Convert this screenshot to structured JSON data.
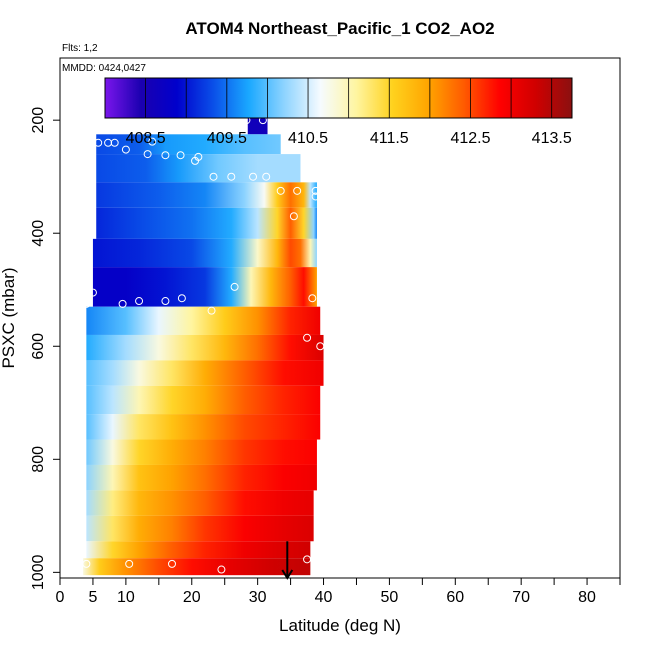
{
  "chart_data": {
    "type": "heatmap",
    "title": "ATOM4 Northeast_Pacific_1 CO2_AO2",
    "notes": [
      "Flts: 1,2",
      "MMDD: 0424,0427"
    ],
    "xlabel": "Latitude (deg N)",
    "ylabel": "PSXC (mbar)",
    "xlim": [
      0,
      85
    ],
    "ylim": [
      1010,
      90
    ],
    "x_ticks": [
      0,
      5,
      10,
      20,
      30,
      40,
      50,
      60,
      70,
      80
    ],
    "y_ticks": [
      200,
      400,
      600,
      800,
      1000
    ],
    "colorbar": {
      "min": 408.0,
      "max": 413.75,
      "tick_values": [
        408.5,
        409.5,
        410.5,
        411.5,
        412.5,
        413.5
      ],
      "tick_labels": [
        "408.5",
        "409.5",
        "410.5",
        "411.5",
        "412.5",
        "413.5"
      ],
      "colors": [
        "#7a16ec",
        "#1b00b0",
        "#0000cc",
        "#0a4ee8",
        "#1aa8ff",
        "#8fd4ff",
        "#f6fbff",
        "#fff5a0",
        "#ffd21e",
        "#ffa500",
        "#ff5a00",
        "#ff0000",
        "#cf0000",
        "#8b1010"
      ]
    },
    "bands": [
      {
        "p_top": 180,
        "p_bot": 225,
        "x0": 28.5,
        "x1": 31.5,
        "values": [
          [
            28.5,
            408.6
          ],
          [
            31.5,
            408.6
          ]
        ]
      },
      {
        "p_top": 225,
        "p_bot": 260,
        "x0": 5.5,
        "x1": 33.5,
        "values": [
          [
            5.5,
            409.3
          ],
          [
            12,
            409.4
          ],
          [
            16,
            409.7
          ],
          [
            22,
            409.8
          ],
          [
            28,
            410.0
          ],
          [
            33.5,
            410.1
          ]
        ]
      },
      {
        "p_top": 260,
        "p_bot": 310,
        "x0": 5.5,
        "x1": 36.5,
        "values": [
          [
            5.5,
            409.3
          ],
          [
            13,
            409.4
          ],
          [
            18,
            409.7
          ],
          [
            24,
            410.1
          ],
          [
            30,
            410.3
          ],
          [
            36.5,
            410.3
          ]
        ]
      },
      {
        "p_top": 310,
        "p_bot": 355,
        "x0": 5.5,
        "x1": 39.0,
        "values": [
          [
            5.5,
            409.2
          ],
          [
            15,
            409.4
          ],
          [
            22,
            409.6
          ],
          [
            28,
            410.2
          ],
          [
            31,
            410.7
          ],
          [
            33,
            411.6
          ],
          [
            35,
            412.3
          ],
          [
            37,
            411.8
          ],
          [
            38,
            410.4
          ],
          [
            39,
            409.8
          ]
        ]
      },
      {
        "p_top": 355,
        "p_bot": 410,
        "x0": 5.5,
        "x1": 39.0,
        "values": [
          [
            5.5,
            409.1
          ],
          [
            12,
            409.3
          ],
          [
            20,
            409.5
          ],
          [
            26,
            409.8
          ],
          [
            30,
            410.4
          ],
          [
            33,
            411.5
          ],
          [
            35,
            412.4
          ],
          [
            37,
            411.5
          ],
          [
            38.5,
            410.2
          ],
          [
            39,
            409.6
          ]
        ]
      },
      {
        "p_top": 410,
        "p_bot": 460,
        "x0": 5.0,
        "x1": 39.0,
        "values": [
          [
            5,
            409.0
          ],
          [
            12,
            409.1
          ],
          [
            20,
            409.3
          ],
          [
            26,
            409.8
          ],
          [
            30,
            410.9
          ],
          [
            33,
            411.8
          ],
          [
            35,
            412.5
          ],
          [
            36.5,
            412.3
          ],
          [
            38,
            411.0
          ],
          [
            39,
            410.2
          ]
        ]
      },
      {
        "p_top": 460,
        "p_bot": 530,
        "x0": 5.0,
        "x1": 39.0,
        "values": [
          [
            5,
            408.8
          ],
          [
            10,
            408.8
          ],
          [
            16,
            409.0
          ],
          [
            22,
            409.2
          ],
          [
            26,
            409.8
          ],
          [
            29,
            411.0
          ],
          [
            32,
            411.8
          ],
          [
            35,
            412.4
          ],
          [
            37,
            412.8
          ],
          [
            39,
            412.0
          ]
        ]
      },
      {
        "p_top": 530,
        "p_bot": 580,
        "x0": 4.0,
        "x1": 39.5,
        "values": [
          [
            4,
            409.6
          ],
          [
            10,
            410.0
          ],
          [
            15,
            410.6
          ],
          [
            20,
            411.1
          ],
          [
            25,
            411.6
          ],
          [
            30,
            412.1
          ],
          [
            35,
            412.7
          ],
          [
            39.5,
            413.0
          ]
        ]
      },
      {
        "p_top": 580,
        "p_bot": 625,
        "x0": 4.0,
        "x1": 40.0,
        "values": [
          [
            4,
            409.8
          ],
          [
            10,
            410.3
          ],
          [
            15,
            410.8
          ],
          [
            20,
            411.3
          ],
          [
            25,
            411.8
          ],
          [
            30,
            412.3
          ],
          [
            35,
            412.8
          ],
          [
            40,
            413.2
          ]
        ]
      },
      {
        "p_top": 625,
        "p_bot": 670,
        "x0": 4.0,
        "x1": 40.0,
        "values": [
          [
            4,
            410.0
          ],
          [
            8,
            410.3
          ],
          [
            12,
            410.8
          ],
          [
            17,
            411.3
          ],
          [
            22,
            411.9
          ],
          [
            28,
            412.4
          ],
          [
            34,
            412.8
          ],
          [
            40,
            413.0
          ]
        ]
      },
      {
        "p_top": 670,
        "p_bot": 720,
        "x0": 4.0,
        "x1": 39.5,
        "values": [
          [
            4,
            410.0
          ],
          [
            8,
            410.4
          ],
          [
            12,
            411.0
          ],
          [
            17,
            411.5
          ],
          [
            22,
            411.9
          ],
          [
            28,
            412.4
          ],
          [
            34,
            412.7
          ],
          [
            39.5,
            412.9
          ]
        ]
      },
      {
        "p_top": 720,
        "p_bot": 765,
        "x0": 4.0,
        "x1": 39.5,
        "values": [
          [
            4,
            410.0
          ],
          [
            8,
            410.6
          ],
          [
            12,
            411.3
          ],
          [
            17,
            411.7
          ],
          [
            22,
            412.1
          ],
          [
            28,
            412.5
          ],
          [
            34,
            412.7
          ],
          [
            39.5,
            412.9
          ]
        ]
      },
      {
        "p_top": 765,
        "p_bot": 810,
        "x0": 4.0,
        "x1": 39.0,
        "values": [
          [
            4,
            410.1
          ],
          [
            8,
            410.8
          ],
          [
            12,
            411.5
          ],
          [
            17,
            411.9
          ],
          [
            22,
            412.2
          ],
          [
            28,
            412.6
          ],
          [
            34,
            412.8
          ],
          [
            39,
            412.9
          ]
        ]
      },
      {
        "p_top": 810,
        "p_bot": 855,
        "x0": 4.0,
        "x1": 39.0,
        "values": [
          [
            4,
            410.2
          ],
          [
            8,
            411.0
          ],
          [
            12,
            411.7
          ],
          [
            17,
            412.0
          ],
          [
            22,
            412.3
          ],
          [
            28,
            412.7
          ],
          [
            34,
            412.9
          ],
          [
            39,
            413.0
          ]
        ]
      },
      {
        "p_top": 855,
        "p_bot": 900,
        "x0": 4.0,
        "x1": 38.5,
        "values": [
          [
            4,
            410.3
          ],
          [
            8,
            411.2
          ],
          [
            12,
            411.8
          ],
          [
            17,
            412.1
          ],
          [
            22,
            412.4
          ],
          [
            28,
            412.8
          ],
          [
            34,
            413.0
          ],
          [
            38.5,
            413.1
          ]
        ]
      },
      {
        "p_top": 900,
        "p_bot": 945,
        "x0": 4.0,
        "x1": 38.5,
        "values": [
          [
            4,
            410.4
          ],
          [
            8,
            411.3
          ],
          [
            12,
            411.9
          ],
          [
            17,
            412.2
          ],
          [
            22,
            412.6
          ],
          [
            28,
            412.9
          ],
          [
            34,
            413.1
          ],
          [
            38.5,
            413.2
          ]
        ]
      },
      {
        "p_top": 945,
        "p_bot": 975,
        "x0": 4.0,
        "x1": 38.0,
        "values": [
          [
            4,
            410.6
          ],
          [
            8,
            411.5
          ],
          [
            12,
            412.0
          ],
          [
            17,
            412.4
          ],
          [
            22,
            412.7
          ],
          [
            28,
            413.0
          ],
          [
            34,
            413.2
          ],
          [
            38,
            413.3
          ]
        ]
      },
      {
        "p_top": 975,
        "p_bot": 1005,
        "x0": 3.5,
        "x1": 38.0,
        "values": [
          [
            3.5,
            410.8
          ],
          [
            6,
            411.6
          ],
          [
            10,
            412.1
          ],
          [
            15,
            412.5
          ],
          [
            20,
            412.8
          ],
          [
            26,
            413.1
          ],
          [
            32,
            413.3
          ],
          [
            38,
            413.4
          ]
        ]
      }
    ],
    "points": [
      {
        "lat": 28.3,
        "p": 200
      },
      {
        "lat": 30.8,
        "p": 200
      },
      {
        "lat": 5.8,
        "p": 240
      },
      {
        "lat": 7.3,
        "p": 240
      },
      {
        "lat": 8.3,
        "p": 240
      },
      {
        "lat": 14.0,
        "p": 238
      },
      {
        "lat": 10.0,
        "p": 252
      },
      {
        "lat": 13.3,
        "p": 260
      },
      {
        "lat": 16.0,
        "p": 262
      },
      {
        "lat": 18.3,
        "p": 262
      },
      {
        "lat": 20.5,
        "p": 272
      },
      {
        "lat": 21.0,
        "p": 265
      },
      {
        "lat": 23.3,
        "p": 300
      },
      {
        "lat": 26.0,
        "p": 300
      },
      {
        "lat": 29.3,
        "p": 300
      },
      {
        "lat": 31.3,
        "p": 300
      },
      {
        "lat": 33.5,
        "p": 325
      },
      {
        "lat": 36.0,
        "p": 325
      },
      {
        "lat": 38.8,
        "p": 325
      },
      {
        "lat": 38.8,
        "p": 335
      },
      {
        "lat": 35.5,
        "p": 370
      },
      {
        "lat": 5.0,
        "p": 505
      },
      {
        "lat": 4.0,
        "p": 525
      },
      {
        "lat": 9.5,
        "p": 525
      },
      {
        "lat": 12.0,
        "p": 520
      },
      {
        "lat": 16.0,
        "p": 520
      },
      {
        "lat": 18.5,
        "p": 515
      },
      {
        "lat": 23.0,
        "p": 537
      },
      {
        "lat": 26.5,
        "p": 495
      },
      {
        "lat": 38.3,
        "p": 515
      },
      {
        "lat": 37.5,
        "p": 585
      },
      {
        "lat": 39.5,
        "p": 600
      },
      {
        "lat": 4.0,
        "p": 985
      },
      {
        "lat": 10.5,
        "p": 985
      },
      {
        "lat": 17.0,
        "p": 985
      },
      {
        "lat": 24.5,
        "p": 995
      },
      {
        "lat": 37.5,
        "p": 977
      }
    ],
    "arrow": {
      "lat": 34.5,
      "p_from": 945,
      "p_to": 1010
    }
  }
}
